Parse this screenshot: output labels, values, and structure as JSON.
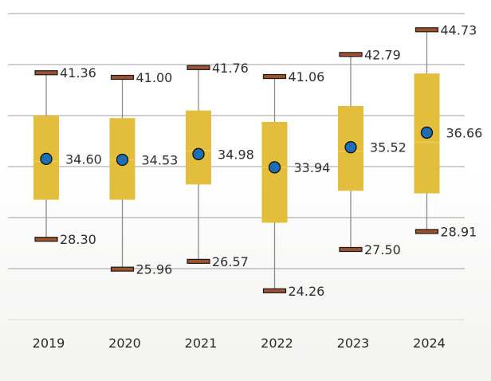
{
  "chart_data": {
    "type": "box",
    "title": "",
    "xlabel": "",
    "ylabel": "",
    "categories": [
      "2019",
      "2020",
      "2021",
      "2022",
      "2023",
      "2024"
    ],
    "ylim": [
      22,
      46
    ],
    "yticks": [
      22,
      26,
      30,
      34,
      38,
      42,
      46
    ],
    "ytick_labels_visible": false,
    "grid": true,
    "series": [
      {
        "category": "2019",
        "min": 28.3,
        "q1": 31.4,
        "median": 34.4,
        "q3": 38.0,
        "max": 41.36,
        "mean": 34.6
      },
      {
        "category": "2020",
        "min": 25.96,
        "q1": 31.4,
        "median": 34.55,
        "q3": 37.8,
        "max": 41.0,
        "mean": 34.53
      },
      {
        "category": "2021",
        "min": 26.57,
        "q1": 32.6,
        "median": 35.25,
        "q3": 38.4,
        "max": 41.76,
        "mean": 34.98
      },
      {
        "category": "2022",
        "min": 24.26,
        "q1": 29.6,
        "median": 33.95,
        "q3": 37.5,
        "max": 41.06,
        "mean": 33.94
      },
      {
        "category": "2023",
        "min": 27.5,
        "q1": 32.1,
        "median": 35.2,
        "q3": 38.75,
        "max": 42.79,
        "mean": 35.52
      },
      {
        "category": "2024",
        "min": 28.91,
        "q1": 31.9,
        "median": 35.9,
        "q3": 41.3,
        "max": 44.73,
        "mean": 36.66
      }
    ],
    "labels": {
      "max": [
        "41.36",
        "41.00",
        "41.76",
        "41.06",
        "42.79",
        "44.73"
      ],
      "mean": [
        "34.60",
        "34.53",
        "34.98",
        "33.94",
        "35.52",
        "36.66"
      ],
      "min": [
        "28.30",
        "25.96",
        "26.57",
        "24.26",
        "27.50",
        "28.91"
      ]
    },
    "colors": {
      "box": "#e3bd3c",
      "cap": "#a0522d",
      "mean_marker": "#1f6db5",
      "whisker": "#8a8a8a",
      "grid": "#bdbdbd"
    },
    "legend": "none"
  }
}
